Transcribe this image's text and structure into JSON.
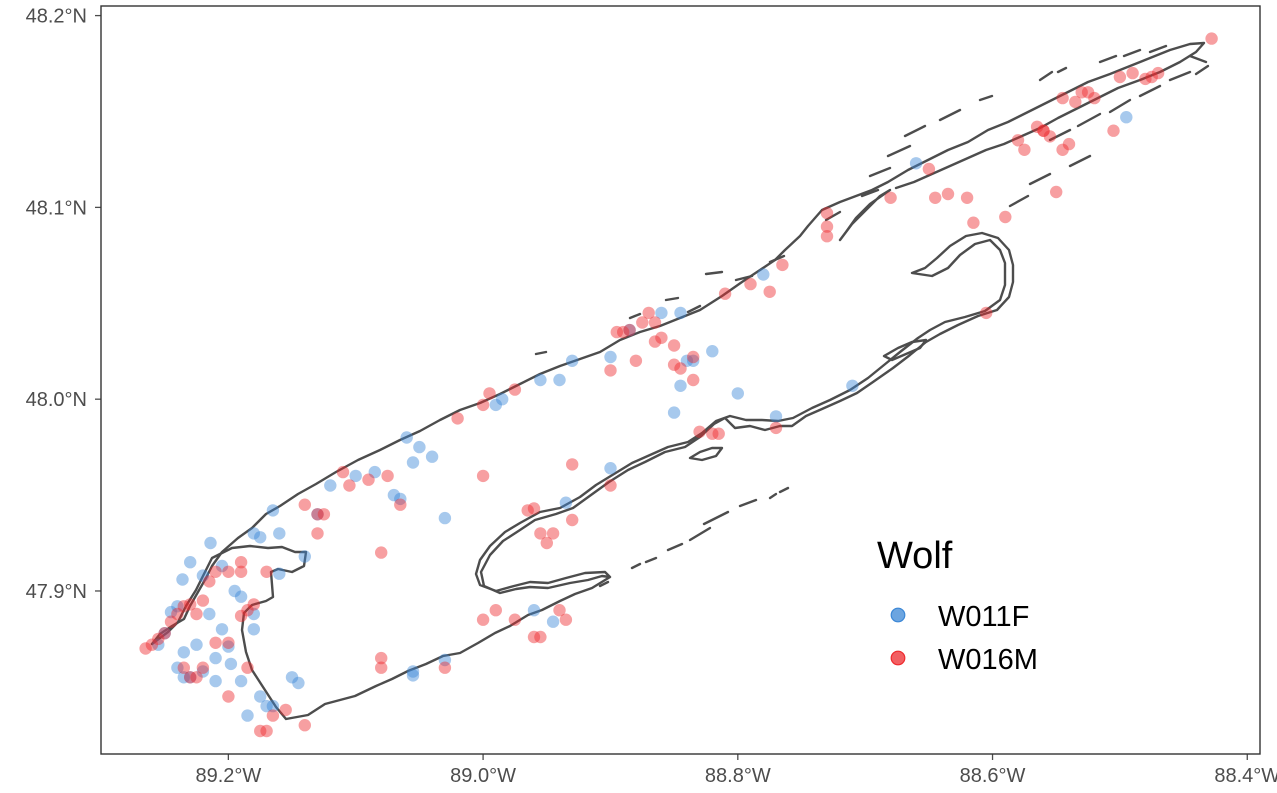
{
  "chart_data": {
    "type": "scatter",
    "title": "",
    "xlabel": "",
    "ylabel": "",
    "xlim": [
      -89.3,
      -88.39
    ],
    "ylim": [
      47.815,
      48.205
    ],
    "x_ticks": [
      {
        "value": -89.2,
        "label": "89.2°W"
      },
      {
        "value": -89.0,
        "label": "89.0°W"
      },
      {
        "value": -88.8,
        "label": "88.8°W"
      },
      {
        "value": -88.6,
        "label": "88.6°W"
      },
      {
        "value": -88.4,
        "label": "88.4°W"
      }
    ],
    "y_ticks": [
      {
        "value": 47.9,
        "label": "47.9°N"
      },
      {
        "value": 48.0,
        "label": "48.0°N"
      },
      {
        "value": 48.1,
        "label": "48.1°N"
      },
      {
        "value": 48.2,
        "label": "48.2°N"
      }
    ],
    "grid": false,
    "outline_color": "#4d4d4d",
    "legend": {
      "title": "Wolf",
      "position": "bottom-right",
      "entries": [
        {
          "label": "W011F",
          "color": "#3b87d6"
        },
        {
          "label": "W016M",
          "color": "#ee2a2e"
        }
      ]
    },
    "series": [
      {
        "name": "W011F",
        "color": "#3b87d6",
        "points": [
          [
            -89.236,
            47.906
          ],
          [
            -89.23,
            47.915
          ],
          [
            -89.22,
            47.908
          ],
          [
            -89.214,
            47.925
          ],
          [
            -89.205,
            47.913
          ],
          [
            -89.195,
            47.9
          ],
          [
            -89.215,
            47.888
          ],
          [
            -89.225,
            47.872
          ],
          [
            -89.235,
            47.868
          ],
          [
            -89.21,
            47.865
          ],
          [
            -89.22,
            47.858
          ],
          [
            -89.23,
            47.855
          ],
          [
            -89.24,
            47.86
          ],
          [
            -89.205,
            47.88
          ],
          [
            -89.2,
            47.871
          ],
          [
            -89.198,
            47.862
          ],
          [
            -89.185,
            47.835
          ],
          [
            -89.175,
            47.845
          ],
          [
            -89.17,
            47.84
          ],
          [
            -89.18,
            47.888
          ],
          [
            -89.19,
            47.897
          ],
          [
            -89.16,
            47.909
          ],
          [
            -89.175,
            47.928
          ],
          [
            -89.18,
            47.93
          ],
          [
            -89.165,
            47.942
          ],
          [
            -89.16,
            47.93
          ],
          [
            -89.14,
            47.918
          ],
          [
            -89.13,
            47.94
          ],
          [
            -89.12,
            47.955
          ],
          [
            -89.1,
            47.96
          ],
          [
            -89.085,
            47.962
          ],
          [
            -89.07,
            47.95
          ],
          [
            -89.065,
            47.948
          ],
          [
            -89.06,
            47.98
          ],
          [
            -89.05,
            47.975
          ],
          [
            -89.04,
            47.97
          ],
          [
            -89.055,
            47.967
          ],
          [
            -89.03,
            47.938
          ],
          [
            -88.99,
            47.997
          ],
          [
            -88.985,
            48.0
          ],
          [
            -88.955,
            48.01
          ],
          [
            -88.94,
            48.01
          ],
          [
            -88.93,
            48.02
          ],
          [
            -88.9,
            48.022
          ],
          [
            -88.885,
            48.036
          ],
          [
            -88.86,
            48.045
          ],
          [
            -88.845,
            48.045
          ],
          [
            -88.835,
            48.02
          ],
          [
            -88.845,
            48.007
          ],
          [
            -88.85,
            47.993
          ],
          [
            -88.8,
            48.003
          ],
          [
            -88.78,
            48.065
          ],
          [
            -88.77,
            47.991
          ],
          [
            -88.71,
            48.007
          ],
          [
            -88.66,
            48.123
          ],
          [
            -88.495,
            48.147
          ],
          [
            -89.24,
            47.892
          ],
          [
            -89.245,
            47.889
          ],
          [
            -89.25,
            47.878
          ],
          [
            -89.255,
            47.872
          ],
          [
            -89.18,
            47.88
          ],
          [
            -89.19,
            47.853
          ],
          [
            -89.21,
            47.853
          ],
          [
            -89.235,
            47.855
          ],
          [
            -89.145,
            47.852
          ],
          [
            -89.055,
            47.856
          ],
          [
            -89.055,
            47.858
          ],
          [
            -89.03,
            47.864
          ],
          [
            -88.96,
            47.89
          ],
          [
            -88.945,
            47.884
          ],
          [
            -88.935,
            47.946
          ],
          [
            -88.9,
            47.964
          ],
          [
            -88.84,
            48.02
          ],
          [
            -88.82,
            48.025
          ],
          [
            -89.15,
            47.855
          ],
          [
            -89.165,
            47.84
          ]
        ]
      },
      {
        "name": "W016M",
        "color": "#ee2a2e",
        "points": [
          [
            -89.265,
            47.87
          ],
          [
            -89.26,
            47.872
          ],
          [
            -89.255,
            47.875
          ],
          [
            -89.25,
            47.878
          ],
          [
            -89.245,
            47.884
          ],
          [
            -89.24,
            47.888
          ],
          [
            -89.235,
            47.892
          ],
          [
            -89.23,
            47.893
          ],
          [
            -89.225,
            47.888
          ],
          [
            -89.22,
            47.895
          ],
          [
            -89.215,
            47.905
          ],
          [
            -89.21,
            47.91
          ],
          [
            -89.2,
            47.91
          ],
          [
            -89.19,
            47.91
          ],
          [
            -89.185,
            47.89
          ],
          [
            -89.18,
            47.893
          ],
          [
            -89.2,
            47.873
          ],
          [
            -89.21,
            47.873
          ],
          [
            -89.22,
            47.86
          ],
          [
            -89.225,
            47.855
          ],
          [
            -89.23,
            47.855
          ],
          [
            -89.235,
            47.86
          ],
          [
            -89.2,
            47.845
          ],
          [
            -89.175,
            47.827
          ],
          [
            -89.17,
            47.827
          ],
          [
            -89.165,
            47.835
          ],
          [
            -89.155,
            47.838
          ],
          [
            -89.14,
            47.83
          ],
          [
            -89.13,
            47.94
          ],
          [
            -89.125,
            47.94
          ],
          [
            -89.11,
            47.962
          ],
          [
            -89.105,
            47.955
          ],
          [
            -89.09,
            47.958
          ],
          [
            -89.08,
            47.92
          ],
          [
            -89.02,
            47.99
          ],
          [
            -89.0,
            47.997
          ],
          [
            -88.995,
            48.003
          ],
          [
            -89.0,
            47.96
          ],
          [
            -89.0,
            47.885
          ],
          [
            -88.99,
            47.89
          ],
          [
            -88.96,
            47.876
          ],
          [
            -88.955,
            47.876
          ],
          [
            -88.965,
            47.942
          ],
          [
            -88.96,
            47.943
          ],
          [
            -88.955,
            47.93
          ],
          [
            -88.95,
            47.925
          ],
          [
            -88.945,
            47.93
          ],
          [
            -88.93,
            47.937
          ],
          [
            -88.93,
            47.966
          ],
          [
            -88.9,
            47.955
          ],
          [
            -88.89,
            48.035
          ],
          [
            -88.885,
            48.036
          ],
          [
            -88.875,
            48.04
          ],
          [
            -88.87,
            48.045
          ],
          [
            -88.865,
            48.04
          ],
          [
            -88.86,
            48.032
          ],
          [
            -88.88,
            48.02
          ],
          [
            -88.85,
            48.018
          ],
          [
            -88.845,
            48.016
          ],
          [
            -88.835,
            48.01
          ],
          [
            -88.83,
            47.983
          ],
          [
            -88.82,
            47.982
          ],
          [
            -88.815,
            47.982
          ],
          [
            -88.81,
            48.055
          ],
          [
            -88.79,
            48.06
          ],
          [
            -88.775,
            48.056
          ],
          [
            -88.765,
            48.07
          ],
          [
            -88.77,
            47.985
          ],
          [
            -88.73,
            48.097
          ],
          [
            -88.73,
            48.09
          ],
          [
            -88.73,
            48.085
          ],
          [
            -88.68,
            48.105
          ],
          [
            -88.65,
            48.12
          ],
          [
            -88.645,
            48.105
          ],
          [
            -88.635,
            48.107
          ],
          [
            -88.62,
            48.105
          ],
          [
            -88.615,
            48.092
          ],
          [
            -88.605,
            48.045
          ],
          [
            -88.58,
            48.135
          ],
          [
            -88.575,
            48.13
          ],
          [
            -88.565,
            48.142
          ],
          [
            -88.56,
            48.14
          ],
          [
            -88.555,
            48.137
          ],
          [
            -88.545,
            48.13
          ],
          [
            -88.54,
            48.133
          ],
          [
            -88.535,
            48.155
          ],
          [
            -88.53,
            48.16
          ],
          [
            -88.525,
            48.16
          ],
          [
            -88.52,
            48.157
          ],
          [
            -88.505,
            48.14
          ],
          [
            -88.49,
            48.17
          ],
          [
            -88.48,
            48.167
          ],
          [
            -88.475,
            48.168
          ],
          [
            -88.47,
            48.17
          ],
          [
            -88.428,
            48.188
          ],
          [
            -88.59,
            48.095
          ],
          [
            -88.55,
            48.108
          ],
          [
            -89.08,
            47.86
          ],
          [
            -89.08,
            47.865
          ],
          [
            -89.13,
            47.93
          ],
          [
            -89.14,
            47.945
          ],
          [
            -89.17,
            47.91
          ],
          [
            -89.19,
            47.915
          ],
          [
            -89.19,
            47.887
          ],
          [
            -89.185,
            47.86
          ],
          [
            -88.94,
            47.89
          ],
          [
            -88.935,
            47.885
          ],
          [
            -88.975,
            47.885
          ],
          [
            -89.065,
            47.945
          ],
          [
            -89.075,
            47.96
          ],
          [
            -88.9,
            48.015
          ],
          [
            -88.895,
            48.035
          ],
          [
            -88.865,
            48.03
          ],
          [
            -88.85,
            48.028
          ],
          [
            -88.835,
            48.022
          ],
          [
            -88.975,
            48.005
          ],
          [
            -89.03,
            47.86
          ],
          [
            -88.5,
            48.168
          ],
          [
            -88.56,
            48.14
          ],
          [
            -88.545,
            48.157
          ]
        ]
      }
    ]
  }
}
